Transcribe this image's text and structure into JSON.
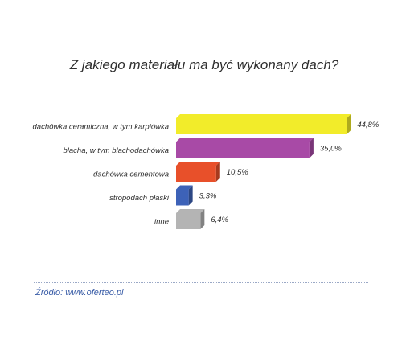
{
  "chart_data": {
    "type": "bar",
    "orientation": "horizontal",
    "title": "Z jakiego materiału ma być wykonany dach?",
    "categories": [
      "dachówka ceramiczna, w tym karpiówka",
      "blacha, w tym blachodachówka",
      "dachówka cementowa",
      "stropodach płaski",
      "inne"
    ],
    "values": [
      44.8,
      35.0,
      10.5,
      3.3,
      6.4
    ],
    "value_labels": [
      "44,8%",
      "35,0%",
      "10,5%",
      "3,3%",
      "6,4%"
    ],
    "colors": [
      "#f2ec2a",
      "#a84aa6",
      "#e8502a",
      "#3d62b8",
      "#b4b4b4"
    ],
    "xlabel": "",
    "ylabel": "",
    "grid": false
  },
  "source": "Źródło: www.oferteo.pl"
}
